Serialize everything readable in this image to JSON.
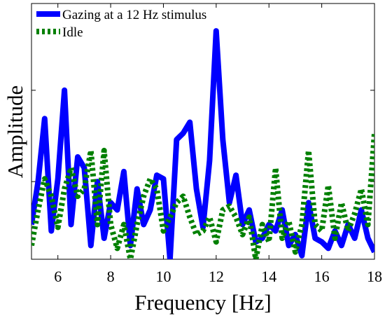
{
  "chart_data": {
    "type": "line",
    "x_label": "Frequency [Hz]",
    "y_label": "Amplitude",
    "x": [
      5,
      5.25,
      5.5,
      5.75,
      6,
      6.25,
      6.5,
      6.75,
      7,
      7.25,
      7.5,
      7.75,
      8,
      8.25,
      8.5,
      8.75,
      9,
      9.25,
      9.5,
      9.75,
      10,
      10.25,
      10.5,
      10.75,
      11,
      11.25,
      11.5,
      11.75,
      12,
      12.25,
      12.5,
      12.75,
      13,
      13.25,
      13.5,
      13.75,
      14,
      14.25,
      14.5,
      14.75,
      15,
      15.25,
      15.5,
      15.75,
      16,
      16.25,
      16.5,
      16.75,
      17,
      17.25,
      17.5,
      17.75,
      18
    ],
    "series": [
      {
        "name": "Gazing at a 12 Hz stimulus",
        "color": "#0000ff",
        "style": "solid",
        "values": [
          0.53,
          1.0,
          1.69,
          0.46,
          1.03,
          2.0,
          0.53,
          1.27,
          1.15,
          0.3,
          1.0,
          0.38,
          0.77,
          0.69,
          1.11,
          0.3,
          0.92,
          0.53,
          0.69,
          1.07,
          1.03,
          0.15,
          1.46,
          1.53,
          1.65,
          0.92,
          0.5,
          1.23,
          2.65,
          1.46,
          0.77,
          1.07,
          0.53,
          0.69,
          0.34,
          0.38,
          0.53,
          0.46,
          0.69,
          0.3,
          0.42,
          0.19,
          0.77,
          0.38,
          0.34,
          0.27,
          0.46,
          0.3,
          0.53,
          0.38,
          0.69,
          0.38,
          0.23
        ]
      },
      {
        "name": "Idle",
        "color": "#008000",
        "style": "dotted",
        "values": [
          0.3,
          0.69,
          1.03,
          0.84,
          0.5,
          0.92,
          1.15,
          0.84,
          0.92,
          1.34,
          0.53,
          1.34,
          0.53,
          0.27,
          0.53,
          0.15,
          0.53,
          0.84,
          1.03,
          0.92,
          0.46,
          0.61,
          0.77,
          0.84,
          0.61,
          0.42,
          0.46,
          0.61,
          0.34,
          0.69,
          0.73,
          0.61,
          0.42,
          0.61,
          0.15,
          0.53,
          0.34,
          1.15,
          0.38,
          0.57,
          0.23,
          0.53,
          1.34,
          0.53,
          0.46,
          0.96,
          0.38,
          0.77,
          0.46,
          0.65,
          0.92,
          0.53,
          1.53
        ]
      }
    ],
    "xlim": [
      5,
      18
    ],
    "xticks": [
      6,
      8,
      10,
      12,
      14,
      16,
      18
    ],
    "ylim": [
      0.15,
      2.95
    ],
    "yticks": [
      1,
      2
    ],
    "legend": "upper left"
  }
}
